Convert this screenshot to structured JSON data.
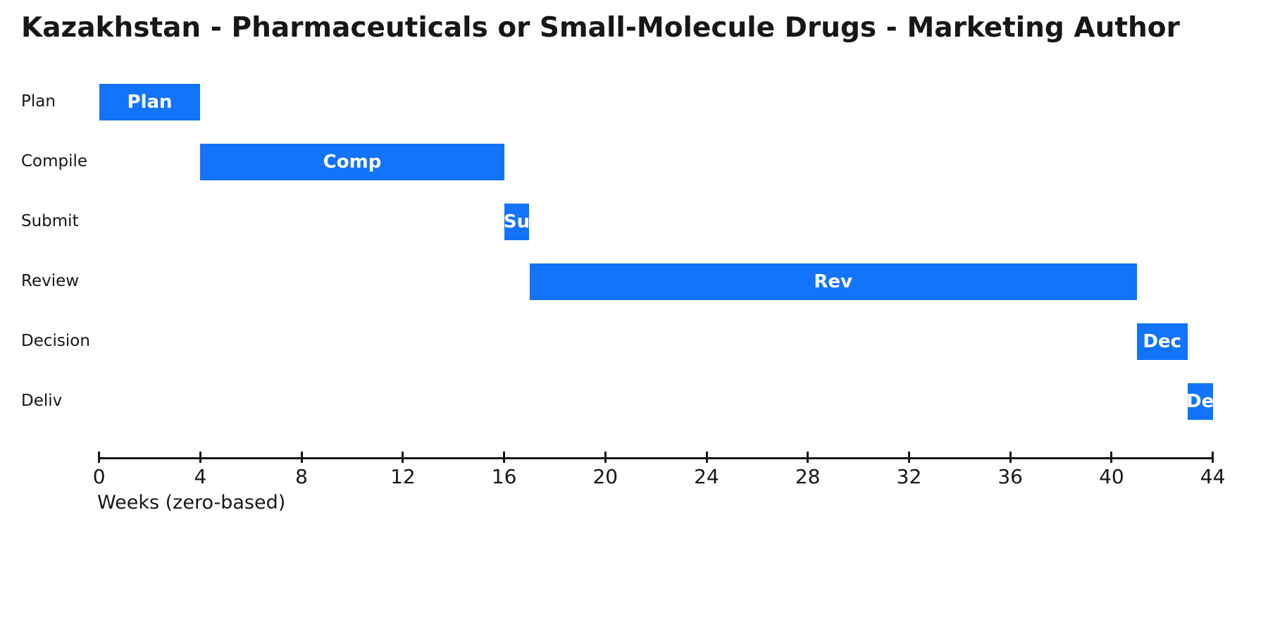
{
  "figure": {
    "background_color": "#ffffff",
    "text_color": "#171717",
    "accent_color": "#1273fb"
  },
  "chart_data": {
    "type": "bar",
    "subtype": "gantt-horizontal",
    "title": "Kazakhstan - Pharmaceuticals or Small-Molecule Drugs - Marketing Author",
    "xlabel": "Weeks (zero-based)",
    "ylabel": "",
    "xlim": [
      0,
      44
    ],
    "xticks": [
      0,
      4,
      8,
      12,
      16,
      20,
      24,
      28,
      32,
      36,
      40,
      44
    ],
    "grid": false,
    "legend": null,
    "bar_color": "#1273fb",
    "bar_label_color": "#ffffff",
    "categories": [
      "Plan",
      "Compile",
      "Submit",
      "Review",
      "Decision",
      "Deliv"
    ],
    "tasks": [
      {
        "row_label": "Plan",
        "bar_label": "Plan",
        "start_week": 0,
        "end_week": 4,
        "duration_weeks": 4
      },
      {
        "row_label": "Compile",
        "bar_label": "Comp",
        "start_week": 4,
        "end_week": 16,
        "duration_weeks": 12
      },
      {
        "row_label": "Submit",
        "bar_label": "Su",
        "start_week": 16,
        "end_week": 17,
        "duration_weeks": 1
      },
      {
        "row_label": "Review",
        "bar_label": "Rev",
        "start_week": 17,
        "end_week": 41,
        "duration_weeks": 24
      },
      {
        "row_label": "Decision",
        "bar_label": "Dec",
        "start_week": 41,
        "end_week": 43,
        "duration_weeks": 2
      },
      {
        "row_label": "Deliv",
        "bar_label": "De",
        "start_week": 43,
        "end_week": 44,
        "duration_weeks": 1
      }
    ]
  }
}
